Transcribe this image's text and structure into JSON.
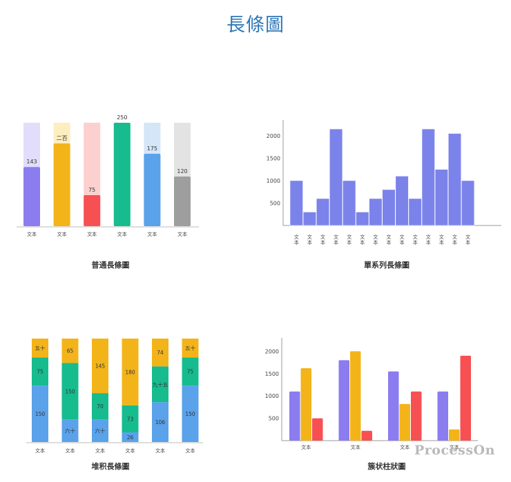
{
  "page": {
    "title": "長條圖"
  },
  "watermark": "ProcessOn",
  "chart_data": [
    {
      "id": "c1",
      "type": "bar",
      "caption": "普通長條圖",
      "categories": [
        "文本",
        "文本",
        "文本",
        "文本",
        "文本",
        "文本"
      ],
      "values": [
        143,
        200,
        75,
        250,
        175,
        120
      ],
      "value_labels": [
        "143",
        "二百",
        "75",
        "250",
        "175",
        "120"
      ],
      "max": 250,
      "colors": [
        "#8b7cf0",
        "#f3b41a",
        "#f75053",
        "#16bc8e",
        "#5aa2ea",
        "#9e9e9e"
      ],
      "track_colors": [
        "#e1ddfb",
        "#fdeebf",
        "#fdd0d0",
        "#c6ece0",
        "#d4e6f8",
        "#e3e3e3"
      ],
      "axes": false
    },
    {
      "id": "c2",
      "type": "bar",
      "caption": "單系列長條圖",
      "categories": [
        "文本",
        "文本",
        "文本",
        "文本",
        "文本",
        "文本",
        "文本",
        "文本",
        "文本",
        "文本",
        "文本",
        "文本",
        "文本",
        "文本"
      ],
      "values": [
        1000,
        300,
        600,
        2150,
        1000,
        300,
        600,
        800,
        1100,
        600,
        2150,
        1250,
        2050,
        1000
      ],
      "yticks": [
        500,
        1000,
        1500,
        2000
      ],
      "ylim": [
        0,
        2350
      ],
      "color": "#7b83ea",
      "axes": true
    },
    {
      "id": "c3",
      "type": "bar",
      "stacked": true,
      "caption": "堆积長條圖",
      "categories": [
        "文本",
        "文本",
        "文本",
        "文本",
        "文本",
        "文本"
      ],
      "series": [
        {
          "color": "#5aa2ea",
          "values": [
            150,
            60,
            60,
            26,
            106,
            150
          ],
          "labels": [
            "150",
            "六十",
            "六十",
            "26",
            "106",
            "150"
          ]
        },
        {
          "color": "#16bc8e",
          "values": [
            75,
            150,
            70,
            73,
            95,
            75
          ],
          "labels": [
            "75",
            "150",
            "70",
            "73",
            "九十五",
            "75"
          ]
        },
        {
          "color": "#f3b41a",
          "values": [
            50,
            65,
            145,
            180,
            74,
            50
          ],
          "labels": [
            "五十",
            "65",
            "145",
            "180",
            "74",
            "五十"
          ]
        }
      ],
      "axes": false
    },
    {
      "id": "c4",
      "type": "bar",
      "grouped": true,
      "caption": "簇状柱狀圖",
      "categories": [
        "文本",
        "文本",
        "文本",
        "文本"
      ],
      "series": [
        {
          "color": "#8b7cf0",
          "values": [
            1100,
            1800,
            1550,
            1100
          ]
        },
        {
          "color": "#f3b41a",
          "values": [
            1620,
            2000,
            820,
            250
          ]
        },
        {
          "color": "#f75053",
          "values": [
            500,
            220,
            1100,
            1900
          ]
        }
      ],
      "yticks": [
        500,
        1000,
        1500,
        2000
      ],
      "ylim": [
        0,
        2300
      ],
      "axes": true
    }
  ]
}
